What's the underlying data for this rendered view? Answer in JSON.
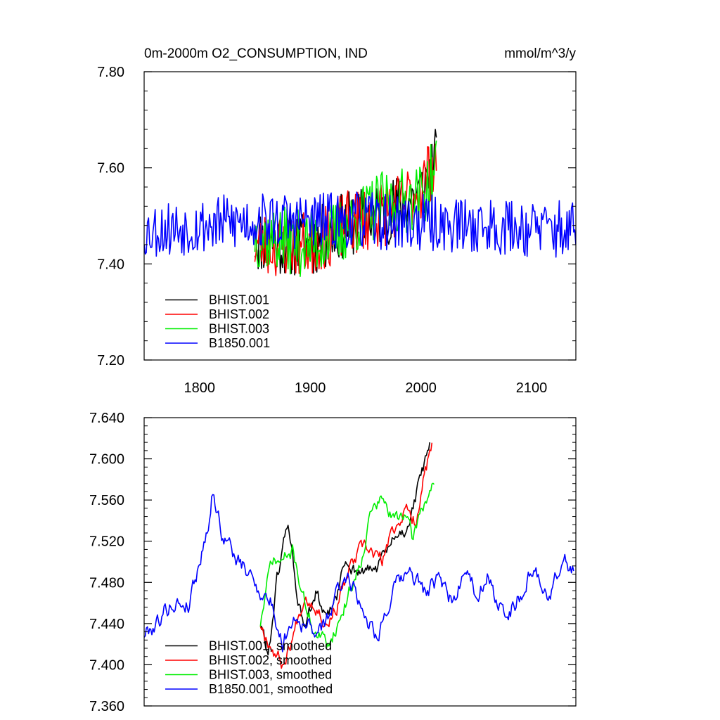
{
  "chart_data": [
    {
      "type": "line",
      "title": "0m-2000m O2_CONSUMPTION, IND",
      "units": "mmol/m^3/y",
      "xlabel": "",
      "ylabel": "",
      "xlim": [
        1750,
        2140
      ],
      "ylim": [
        7.2,
        7.8
      ],
      "xticks": [
        1800,
        1900,
        2000,
        2100
      ],
      "xtick_labels": [
        "1800",
        "1900",
        "2000",
        "2100"
      ],
      "yticks": [
        7.2,
        7.4,
        7.6,
        7.8
      ],
      "ytick_labels": [
        "7.20",
        "7.40",
        "7.60",
        "7.80"
      ],
      "legend": "bottom-left",
      "grid": false,
      "series": [
        {
          "name": "BHIST.001",
          "color": "#000000",
          "start": 1850,
          "end": 2014,
          "base": [
            [
              1850,
              7.45
            ],
            [
              1900,
              7.44
            ],
            [
              1930,
              7.48
            ],
            [
              1960,
              7.5
            ],
            [
              1980,
              7.52
            ],
            [
              2000,
              7.55
            ],
            [
              2014,
              7.62
            ]
          ],
          "noise": 0.07,
          "seed": 11
        },
        {
          "name": "BHIST.002",
          "color": "#ff0000",
          "start": 1850,
          "end": 2014,
          "base": [
            [
              1850,
              7.44
            ],
            [
              1900,
              7.44
            ],
            [
              1930,
              7.48
            ],
            [
              1960,
              7.5
            ],
            [
              1980,
              7.52
            ],
            [
              2000,
              7.56
            ],
            [
              2014,
              7.62
            ]
          ],
          "noise": 0.07,
          "seed": 23
        },
        {
          "name": "BHIST.003",
          "color": "#00ee00",
          "start": 1850,
          "end": 2014,
          "base": [
            [
              1850,
              7.46
            ],
            [
              1900,
              7.44
            ],
            [
              1930,
              7.47
            ],
            [
              1960,
              7.52
            ],
            [
              1980,
              7.53
            ],
            [
              2000,
              7.54
            ],
            [
              2014,
              7.6
            ]
          ],
          "noise": 0.07,
          "seed": 37
        },
        {
          "name": "B1850.001",
          "color": "#0000ff",
          "start": 1750,
          "end": 2140,
          "base": [
            [
              1750,
              7.47
            ],
            [
              1850,
              7.49
            ],
            [
              1950,
              7.49
            ],
            [
              2050,
              7.48
            ],
            [
              2140,
              7.47
            ]
          ],
          "noise": 0.06,
          "seed": 53
        }
      ]
    },
    {
      "type": "line",
      "title": "",
      "xlabel": "",
      "ylabel": "",
      "xlim": [
        1750,
        2140
      ],
      "ylim": [
        7.36,
        7.64
      ],
      "xticks": [
        1800,
        1900,
        2000,
        2100
      ],
      "yticks": [
        7.36,
        7.4,
        7.44,
        7.48,
        7.52,
        7.56,
        7.6,
        7.64
      ],
      "ytick_labels": [
        "7.360",
        "7.400",
        "7.440",
        "7.480",
        "7.520",
        "7.560",
        "7.600",
        "7.640"
      ],
      "legend": "bottom-left",
      "grid": false,
      "series": [
        {
          "name": "BHIST.001, smoothed",
          "color": "#000000",
          "start": 1855,
          "end": 2008,
          "base": [
            [
              1855,
              7.44
            ],
            [
              1862,
              7.41
            ],
            [
              1870,
              7.48
            ],
            [
              1880,
              7.54
            ],
            [
              1888,
              7.47
            ],
            [
              1895,
              7.43
            ],
            [
              1905,
              7.47
            ],
            [
              1915,
              7.44
            ],
            [
              1925,
              7.47
            ],
            [
              1932,
              7.5
            ],
            [
              1945,
              7.49
            ],
            [
              1955,
              7.49
            ],
            [
              1965,
              7.5
            ],
            [
              1975,
              7.52
            ],
            [
              1985,
              7.53
            ],
            [
              1995,
              7.56
            ],
            [
              2002,
              7.59
            ],
            [
              2008,
              7.61
            ]
          ],
          "noise": 0.006,
          "seed": 61
        },
        {
          "name": "BHIST.002, smoothed",
          "color": "#ff0000",
          "start": 1855,
          "end": 2010,
          "base": [
            [
              1855,
              7.44
            ],
            [
              1865,
              7.42
            ],
            [
              1875,
              7.4
            ],
            [
              1885,
              7.43
            ],
            [
              1895,
              7.47
            ],
            [
              1905,
              7.46
            ],
            [
              1915,
              7.44
            ],
            [
              1925,
              7.46
            ],
            [
              1935,
              7.49
            ],
            [
              1945,
              7.51
            ],
            [
              1955,
              7.51
            ],
            [
              1965,
              7.5
            ],
            [
              1975,
              7.53
            ],
            [
              1985,
              7.55
            ],
            [
              1995,
              7.54
            ],
            [
              2002,
              7.58
            ],
            [
              2010,
              7.61
            ]
          ],
          "noise": 0.006,
          "seed": 67
        },
        {
          "name": "BHIST.003, smoothed",
          "color": "#00ee00",
          "start": 1855,
          "end": 2012,
          "base": [
            [
              1855,
              7.44
            ],
            [
              1865,
              7.5
            ],
            [
              1875,
              7.5
            ],
            [
              1885,
              7.51
            ],
            [
              1895,
              7.46
            ],
            [
              1905,
              7.43
            ],
            [
              1915,
              7.42
            ],
            [
              1925,
              7.44
            ],
            [
              1935,
              7.47
            ],
            [
              1945,
              7.5
            ],
            [
              1955,
              7.55
            ],
            [
              1965,
              7.56
            ],
            [
              1975,
              7.54
            ],
            [
              1985,
              7.55
            ],
            [
              1992,
              7.52
            ],
            [
              2000,
              7.55
            ],
            [
              2012,
              7.58
            ]
          ],
          "noise": 0.006,
          "seed": 71
        },
        {
          "name": "B1850.001, smoothed",
          "color": "#0000ff",
          "start": 1750,
          "end": 2138,
          "base": [
            [
              1750,
              7.43
            ],
            [
              1760,
              7.44
            ],
            [
              1775,
              7.46
            ],
            [
              1790,
              7.46
            ],
            [
              1800,
              7.5
            ],
            [
              1808,
              7.54
            ],
            [
              1812,
              7.57
            ],
            [
              1820,
              7.53
            ],
            [
              1835,
              7.5
            ],
            [
              1850,
              7.48
            ],
            [
              1865,
              7.46
            ],
            [
              1875,
              7.42
            ],
            [
              1885,
              7.45
            ],
            [
              1895,
              7.44
            ],
            [
              1910,
              7.43
            ],
            [
              1925,
              7.47
            ],
            [
              1935,
              7.49
            ],
            [
              1945,
              7.46
            ],
            [
              1960,
              7.43
            ],
            [
              1975,
              7.47
            ],
            [
              1990,
              7.49
            ],
            [
              2005,
              7.47
            ],
            [
              2015,
              7.48
            ],
            [
              2030,
              7.46
            ],
            [
              2040,
              7.5
            ],
            [
              2050,
              7.47
            ],
            [
              2060,
              7.49
            ],
            [
              2070,
              7.45
            ],
            [
              2085,
              7.46
            ],
            [
              2100,
              7.49
            ],
            [
              2115,
              7.47
            ],
            [
              2130,
              7.5
            ],
            [
              2138,
              7.49
            ]
          ],
          "noise": 0.007,
          "seed": 79
        }
      ]
    }
  ]
}
